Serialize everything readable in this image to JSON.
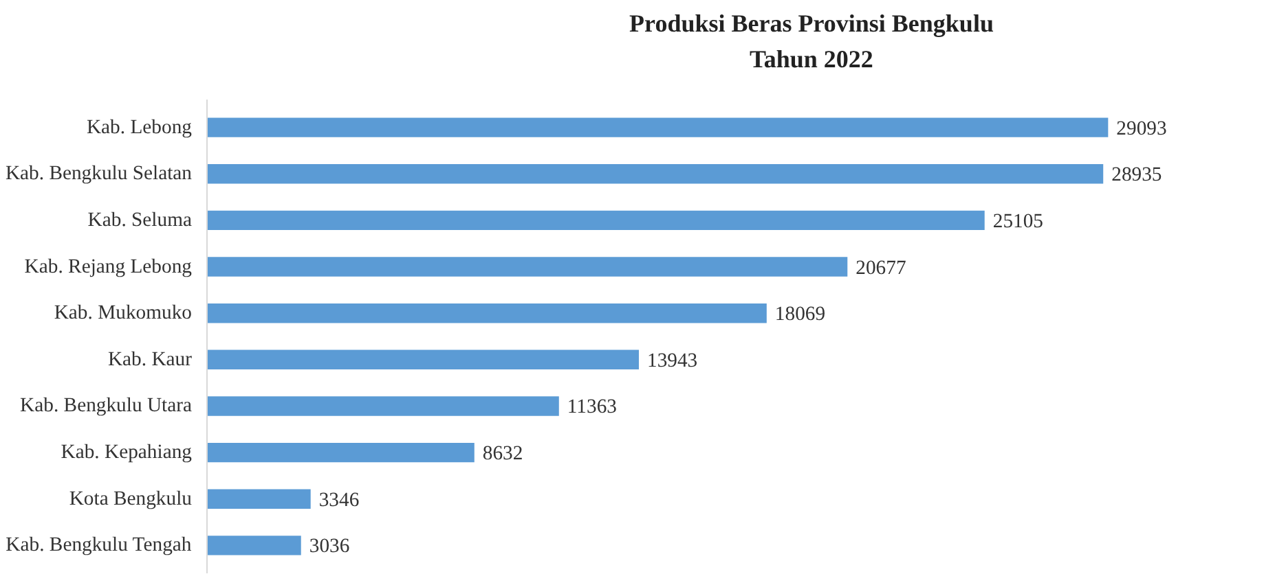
{
  "chart_data": {
    "type": "bar",
    "orientation": "horizontal",
    "title": "Produksi Beras Provinsi Bengkulu\nTahun 2022",
    "categories": [
      "Kab. Lebong",
      "Kab. Bengkulu Selatan",
      "Kab. Seluma",
      "Kab. Rejang Lebong",
      "Kab. Mukomuko",
      "Kab. Kaur",
      "Kab. Bengkulu Utara",
      "Kab. Kepahiang",
      "Kota Bengkulu",
      "Kab. Bengkulu Tengah"
    ],
    "values": [
      29093,
      28935,
      25105,
      20677,
      18069,
      13943,
      11363,
      8632,
      3346,
      3036
    ],
    "color": "#5b9bd5",
    "data_labels": true,
    "tick_labels": "y",
    "grid": false
  }
}
